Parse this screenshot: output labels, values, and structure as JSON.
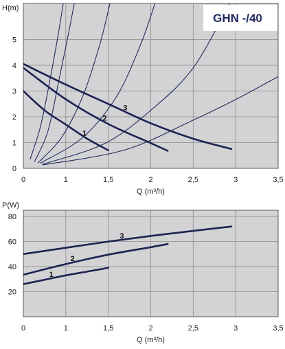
{
  "title": "GHN -/40",
  "colors": {
    "curve": "#1c2251",
    "system_curve": "#1e2a5c",
    "plot_background": "#d3d3d5",
    "grid": "#8b8b8f",
    "frame": "#5a5a5e",
    "title_text": "#1f2b5e"
  },
  "chart_data": [
    {
      "type": "line",
      "ylabel": "H(m)",
      "xlabel": "Q (m³/h)",
      "xlim": [
        0.5,
        3.5
      ],
      "ylim": [
        0,
        6.4
      ],
      "xticks": [
        0.5,
        1,
        1.5,
        2,
        2.5,
        3,
        3.5
      ],
      "xtick_labels": [
        "0",
        "1",
        "1,5",
        "2",
        "2,5",
        "3",
        "3,5"
      ],
      "yticks": [
        0,
        1,
        2,
        3,
        4,
        5
      ],
      "ytick_labels": [
        "0",
        "1",
        "2",
        "3",
        "4",
        "5"
      ],
      "grid": true,
      "series": [
        {
          "name": "1",
          "x": [
            0.5,
            0.75,
            1,
            1.25,
            1.5
          ],
          "y": [
            3.0,
            2.25,
            1.7,
            1.15,
            0.7
          ]
        },
        {
          "name": "2",
          "x": [
            0.5,
            1,
            1.5,
            2,
            2.2
          ],
          "y": [
            3.9,
            2.68,
            1.72,
            0.98,
            0.68
          ]
        },
        {
          "name": "3",
          "x": [
            0.5,
            1,
            1.5,
            2,
            2.5,
            2.95
          ],
          "y": [
            4.05,
            3.25,
            2.5,
            1.75,
            1.15,
            0.75
          ]
        }
      ],
      "system_curves": [
        {
          "x": [
            0.58,
            0.7,
            0.8,
            0.9,
            0.97
          ],
          "y": [
            0.35,
            1.6,
            3.2,
            5.0,
            6.4
          ]
        },
        {
          "x": [
            0.63,
            0.79,
            0.93,
            1.03,
            1.1
          ],
          "y": [
            0.25,
            1.45,
            3.6,
            5.2,
            6.4
          ]
        },
        {
          "x": [
            0.67,
            0.95,
            1.2,
            1.4,
            1.52
          ],
          "y": [
            0.2,
            1.2,
            2.8,
            4.8,
            6.4
          ]
        },
        {
          "x": [
            0.7,
            1.2,
            1.6,
            1.88,
            2.05
          ],
          "y": [
            0.2,
            1.2,
            2.8,
            4.8,
            6.4
          ]
        },
        {
          "x": [
            0.72,
            1.45,
            2.0,
            2.5,
            2.93
          ],
          "y": [
            0.15,
            0.95,
            2.25,
            3.9,
            6.4
          ]
        },
        {
          "x": [
            0.73,
            1.7,
            2.5,
            3.0,
            3.5
          ],
          "y": [
            0.13,
            0.72,
            1.87,
            2.67,
            3.56
          ]
        }
      ]
    },
    {
      "type": "line",
      "ylabel": "P(W)",
      "xlabel": "Q (m³/h)",
      "xlim": [
        0.5,
        3.5
      ],
      "ylim": [
        0,
        85
      ],
      "xticks": [
        0.5,
        1,
        1.5,
        2,
        2.5,
        3,
        3.5
      ],
      "xtick_labels": [
        "0",
        "1",
        "1,5",
        "2",
        "2,5",
        "3",
        "3,5"
      ],
      "yticks": [
        20,
        40,
        60,
        80
      ],
      "ytick_labels": [
        "20",
        "40",
        "60",
        "80"
      ],
      "grid": true,
      "series": [
        {
          "name": "1",
          "x": [
            0.5,
            0.75,
            1,
            1.25,
            1.5
          ],
          "y": [
            26,
            29.5,
            33,
            36,
            39
          ]
        },
        {
          "name": "2",
          "x": [
            0.5,
            1,
            1.5,
            2,
            2.2
          ],
          "y": [
            33.5,
            42,
            49.5,
            55.5,
            58
          ]
        },
        {
          "name": "3",
          "x": [
            0.5,
            1,
            1.5,
            2,
            2.5,
            2.95
          ],
          "y": [
            50,
            55,
            60,
            64.5,
            68.5,
            72
          ]
        }
      ]
    }
  ]
}
